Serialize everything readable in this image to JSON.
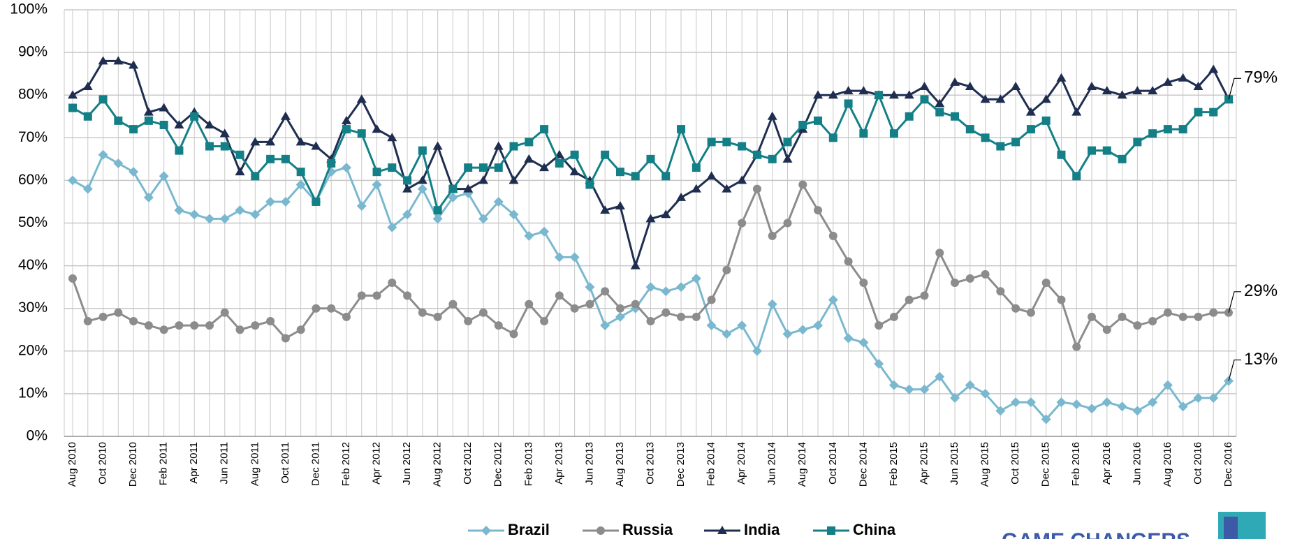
{
  "chart_data": {
    "type": "line",
    "categories": [
      "Aug 2010",
      null,
      "Oct 2010",
      null,
      "Dec 2010",
      null,
      "Feb 2011",
      null,
      "Apr 2011",
      null,
      "Jun 2011",
      null,
      "Aug 2011",
      null,
      "Oct 2011",
      null,
      "Dec 2011",
      null,
      "Feb 2012",
      null,
      "Apr 2012",
      null,
      "Jun 2012",
      null,
      "Aug 2012",
      null,
      "Oct 2012",
      null,
      "Dec 2012",
      null,
      "Feb 2013",
      null,
      "Apr 2013",
      null,
      "Jun 2013",
      null,
      "Aug 2013",
      null,
      "Oct 2013",
      null,
      "Dec 2013",
      null,
      "Feb 2014",
      null,
      "Apr 2014",
      null,
      "Jun 2014",
      null,
      "Aug 2014",
      null,
      "Oct 2014",
      null,
      "Dec 2014",
      null,
      "Feb 2015",
      null,
      "Apr 2015",
      null,
      "Jun 2015",
      null,
      "Aug 2015",
      null,
      "Oct 2015",
      null,
      "Dec 2015",
      null,
      "Feb 2016",
      null,
      "Apr 2016",
      null,
      "Jun 2016",
      null,
      "Aug 2016",
      null,
      "Oct 2016",
      null,
      "Dec 2016"
    ],
    "series": [
      {
        "name": "Brazil",
        "color": "#7ab8cf",
        "marker": "diamond",
        "values": [
          60,
          58,
          66,
          64,
          62,
          56,
          61,
          53,
          52,
          51,
          51,
          53,
          52,
          55,
          55,
          59,
          55,
          62,
          63,
          54,
          59,
          49,
          52,
          58,
          51,
          56,
          57,
          51,
          55,
          52,
          47,
          48,
          42,
          42,
          35,
          26,
          28,
          30,
          35,
          34,
          35,
          37,
          26,
          24,
          26,
          20,
          31,
          24,
          25,
          26,
          32,
          23,
          22,
          17,
          12,
          11,
          11,
          14,
          9,
          12,
          10,
          6,
          8,
          8,
          4,
          8,
          7.5,
          6.5,
          8,
          7,
          6,
          8,
          12,
          7,
          9,
          9,
          13
        ],
        "value_labels": [
          null,
          null,
          null,
          null,
          null,
          null,
          null,
          null,
          null,
          null,
          null,
          null,
          null,
          null,
          null,
          null,
          null,
          null,
          null,
          null,
          null,
          null,
          null,
          null,
          null,
          null,
          null,
          null,
          null,
          null,
          null,
          null,
          null,
          null,
          null,
          null,
          null,
          null,
          null,
          null,
          null,
          null,
          null,
          null,
          null,
          null,
          null,
          null,
          null,
          null,
          null,
          null,
          null,
          null,
          null,
          null,
          null,
          null,
          null,
          null,
          null,
          null,
          null,
          null,
          null,
          null,
          null,
          null,
          null,
          null,
          null,
          null,
          null,
          null,
          null,
          null,
          "13%"
        ]
      },
      {
        "name": "Russia",
        "color": "#8c8c8c",
        "marker": "circle",
        "values": [
          37,
          27,
          28,
          29,
          27,
          26,
          25,
          26,
          26,
          26,
          29,
          25,
          26,
          27,
          23,
          25,
          30,
          30,
          28,
          33,
          33,
          36,
          33,
          29,
          28,
          31,
          27,
          29,
          26,
          24,
          31,
          27,
          33,
          30,
          31,
          34,
          30,
          31,
          27,
          29,
          28,
          28,
          32,
          39,
          50,
          58,
          47,
          50,
          59,
          53,
          47,
          41,
          36,
          26,
          28,
          32,
          33,
          43,
          36,
          37,
          38,
          34,
          30,
          29,
          36,
          32,
          21,
          28,
          25,
          28,
          26,
          27,
          29,
          28,
          28,
          29,
          29
        ],
        "value_labels": [
          null,
          null,
          null,
          null,
          null,
          null,
          null,
          null,
          null,
          null,
          null,
          null,
          null,
          null,
          null,
          null,
          null,
          null,
          null,
          null,
          null,
          null,
          null,
          null,
          null,
          null,
          null,
          null,
          null,
          null,
          null,
          null,
          null,
          null,
          null,
          null,
          null,
          null,
          null,
          null,
          null,
          null,
          null,
          null,
          null,
          null,
          null,
          null,
          null,
          null,
          null,
          null,
          null,
          null,
          null,
          null,
          null,
          null,
          null,
          null,
          null,
          null,
          null,
          null,
          null,
          null,
          null,
          null,
          null,
          null,
          null,
          null,
          null,
          null,
          null,
          null,
          "29%"
        ]
      },
      {
        "name": "India",
        "color": "#1f2e50",
        "marker": "triangle",
        "values": [
          80,
          82,
          88,
          88,
          87,
          76,
          77,
          73,
          76,
          73,
          71,
          62,
          69,
          69,
          75,
          69,
          68,
          65,
          74,
          79,
          72,
          70,
          58,
          60,
          68,
          58,
          58,
          60,
          68,
          60,
          65,
          63,
          66,
          62,
          60,
          53,
          54,
          40,
          51,
          52,
          56,
          58,
          61,
          58,
          60,
          66,
          75,
          65,
          72,
          80,
          80,
          81,
          81,
          80,
          80,
          80,
          82,
          78,
          83,
          82,
          79,
          79,
          82,
          76,
          79,
          84,
          76,
          82,
          81,
          80,
          81,
          81,
          83,
          84,
          82,
          86,
          79
        ]
      },
      {
        "name": "China",
        "color": "#137f86",
        "marker": "square",
        "values": [
          77,
          75,
          79,
          74,
          72,
          74,
          73,
          67,
          75,
          68,
          68,
          66,
          61,
          65,
          65,
          62,
          55,
          64,
          72,
          71,
          62,
          63,
          60,
          67,
          53,
          58,
          63,
          63,
          63,
          68,
          69,
          72,
          64,
          66,
          59,
          66,
          62,
          61,
          65,
          61,
          72,
          63,
          69,
          69,
          68,
          66,
          65,
          69,
          73,
          74,
          70,
          78,
          71,
          80,
          71,
          75,
          79,
          76,
          75,
          72,
          70,
          68,
          69,
          72,
          74,
          66,
          61,
          67,
          67,
          65,
          69,
          71,
          72,
          72,
          76,
          76,
          79
        ],
        "value_labels": [
          null,
          null,
          null,
          null,
          null,
          null,
          null,
          null,
          null,
          null,
          null,
          null,
          null,
          null,
          null,
          null,
          null,
          null,
          null,
          null,
          null,
          null,
          null,
          null,
          null,
          null,
          null,
          null,
          null,
          null,
          null,
          null,
          null,
          null,
          null,
          null,
          null,
          null,
          null,
          null,
          null,
          null,
          null,
          null,
          null,
          null,
          null,
          null,
          null,
          null,
          null,
          null,
          null,
          null,
          null,
          null,
          null,
          null,
          null,
          null,
          null,
          null,
          null,
          null,
          null,
          null,
          null,
          null,
          null,
          null,
          null,
          null,
          null,
          null,
          null,
          null,
          "79%"
        ]
      }
    ],
    "ylim": [
      0,
      100
    ],
    "yticks": [
      {
        "value": 0,
        "label": "0%"
      },
      {
        "value": 10,
        "label": "10%"
      },
      {
        "value": 20,
        "label": "20%"
      },
      {
        "value": 30,
        "label": "30%"
      },
      {
        "value": 40,
        "label": "40%"
      },
      {
        "value": 50,
        "label": "50%"
      },
      {
        "value": 60,
        "label": "60%"
      },
      {
        "value": 70,
        "label": "70%"
      },
      {
        "value": 80,
        "label": "80%"
      },
      {
        "value": 90,
        "label": "90%"
      },
      {
        "value": 100,
        "label": "100%"
      }
    ],
    "grid": true,
    "legend": "bottom",
    "logo_text": "GAME CHANGERS"
  }
}
